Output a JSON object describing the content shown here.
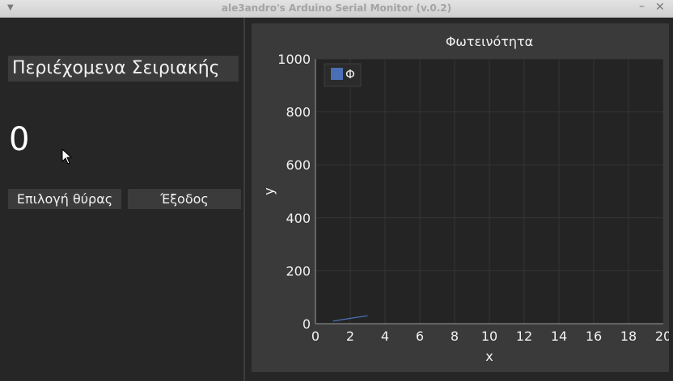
{
  "window": {
    "title": "ale3andro's Arduino Serial Monitor (v.0.2)",
    "menu_icon": "chevron-down-icon",
    "minimize_label": "–",
    "close_label": "✕"
  },
  "left": {
    "serial_contents_label": "Περιέχομενα Σειριακής",
    "current_value": "0",
    "select_port_label": "Επιλογή θύρας",
    "exit_label": "Έξοδος"
  },
  "colors": {
    "background": "#262626",
    "plot_area": "#242424",
    "series": "#4a6fb5",
    "text": "#f2f2f2"
  },
  "chart_data": {
    "type": "line",
    "title": "Φωτεινότητα",
    "xlabel": "x",
    "ylabel": "y",
    "xlim": [
      0,
      20
    ],
    "ylim": [
      0,
      1000
    ],
    "x_ticks": [
      "0",
      "2",
      "4",
      "6",
      "8",
      "10",
      "12",
      "14",
      "16",
      "18",
      "20"
    ],
    "y_ticks": [
      "0",
      "200",
      "400",
      "600",
      "800",
      "1000"
    ],
    "grid": true,
    "legend_position": "top-left",
    "series": [
      {
        "name": "Φ",
        "color": "#4a6fb5",
        "x": [
          1,
          3
        ],
        "y": [
          10,
          30
        ]
      }
    ]
  }
}
